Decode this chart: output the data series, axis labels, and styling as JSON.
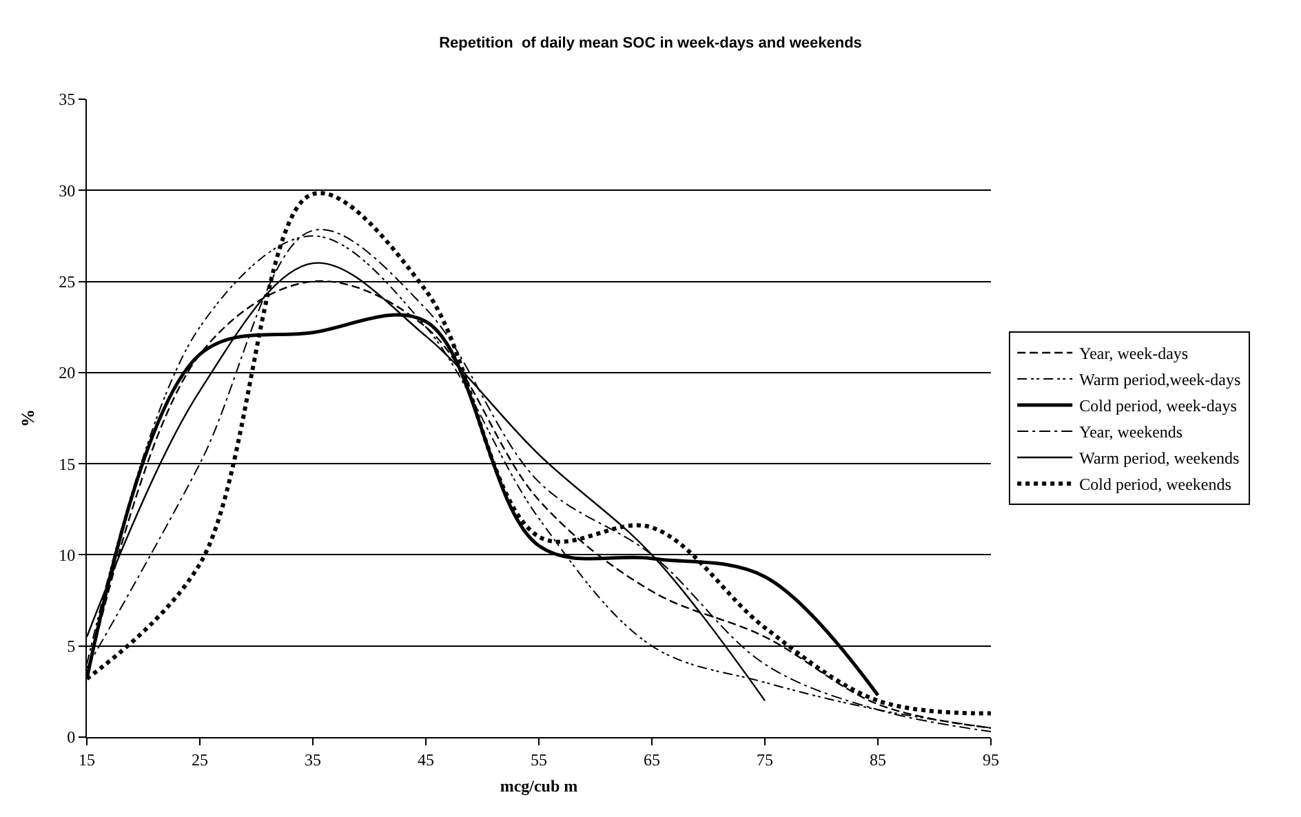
{
  "chart_data": {
    "type": "line",
    "title": "Repetition  of daily mean SOC in week-days and weekends",
    "xlabel": "mcg/cub m",
    "ylabel": "%",
    "x": [
      15,
      25,
      35,
      45,
      55,
      65,
      75,
      85,
      95
    ],
    "series": [
      {
        "name": "Year, week-days",
        "color": "#000000",
        "line_style": "dashed",
        "values": [
          3.3,
          21,
          25,
          22.5,
          13,
          8,
          5.5,
          1.8,
          0.5
        ]
      },
      {
        "name": "Warm period,week-days",
        "color": "#000000",
        "line_style": "dashdotdot",
        "values": [
          4,
          22.5,
          27.5,
          22.5,
          12,
          5,
          3,
          1.5,
          0.5
        ]
      },
      {
        "name": "Cold period, week-days",
        "color": "#000000",
        "line_style": "solid",
        "values": [
          3.2,
          21,
          22.2,
          22.8,
          10.5,
          9.8,
          8.8,
          2.3,
          null
        ]
      },
      {
        "name": "Year, weekends",
        "color": "#000000",
        "line_style": "dashdot",
        "values": [
          3.8,
          15,
          27.8,
          23.5,
          14,
          10,
          4,
          1.5,
          0.3
        ]
      },
      {
        "name": "Warm period, weekends",
        "color": "#000000",
        "line_style": "solid",
        "values": [
          5.5,
          19,
          26,
          22,
          15.5,
          10,
          2,
          null,
          null
        ]
      },
      {
        "name": "Cold period, weekends",
        "color": "#000000",
        "line_style": "dotted",
        "values": [
          3.2,
          9.5,
          29.8,
          24.5,
          11,
          11.5,
          6,
          2,
          1.3
        ]
      }
    ],
    "xlim": [
      15,
      95
    ],
    "xticks": [
      15,
      25,
      35,
      45,
      55,
      65,
      75,
      85,
      95
    ],
    "ylim": [
      0,
      35
    ],
    "yticks": [
      0,
      5,
      10,
      15,
      20,
      25,
      30,
      35
    ],
    "grid": "y",
    "legend": "right",
    "marker": "none"
  }
}
